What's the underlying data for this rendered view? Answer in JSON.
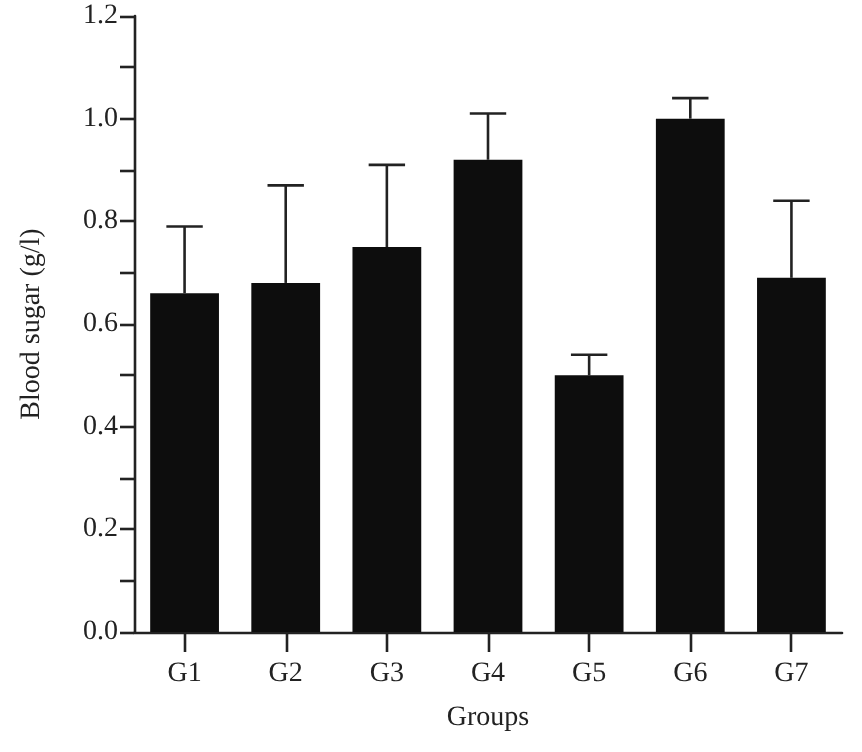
{
  "chart_data": {
    "type": "bar",
    "xlabel": "Groups",
    "ylabel": "Blood sugar (g/l)",
    "categories": [
      "G1",
      "G2",
      "G3",
      "G4",
      "G5",
      "G6",
      "G7"
    ],
    "values": [
      0.66,
      0.68,
      0.75,
      0.92,
      0.5,
      1.0,
      0.69
    ],
    "errors": [
      [
        0.66,
        0.79
      ],
      [
        0.68,
        0.87
      ],
      [
        0.75,
        0.91
      ],
      [
        0.92,
        1.01
      ],
      [
        0.5,
        0.54
      ],
      [
        1.0,
        1.04
      ],
      [
        0.69,
        0.84
      ]
    ],
    "color": "#0d0d0d",
    "ylim": [
      0,
      1.2
    ],
    "yticks": [
      {
        "value": 0,
        "label": "0.0"
      },
      {
        "value": 0.1,
        "label": null
      },
      {
        "value": 0.2,
        "label": "0.2"
      },
      {
        "value": 0.3,
        "label": null
      },
      {
        "value": 0.4,
        "label": "0.4"
      },
      {
        "value": 0.5,
        "label": null
      },
      {
        "value": 0.6,
        "label": "0.6"
      },
      {
        "value": 0.7,
        "label": null
      },
      {
        "value": 0.8,
        "label": "0.8"
      },
      {
        "value": 0.9,
        "label": null
      },
      {
        "value": 1.0,
        "label": "1.0"
      },
      {
        "value": 1.1,
        "label": null
      },
      {
        "value": 1.2,
        "label": "1.2"
      }
    ],
    "grid": false
  }
}
